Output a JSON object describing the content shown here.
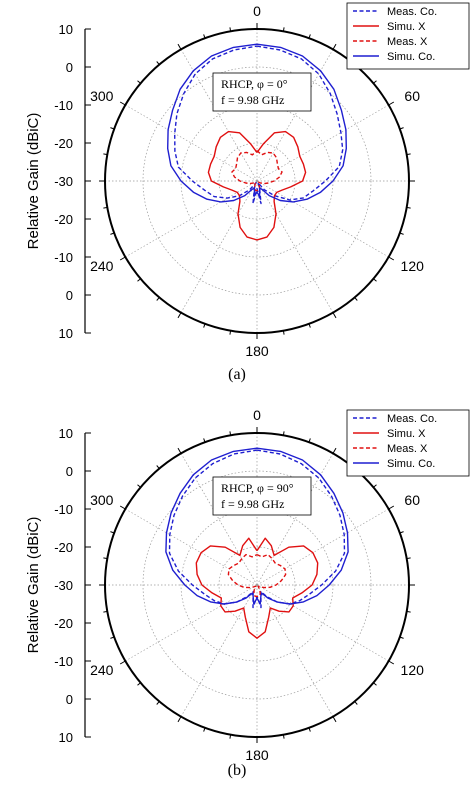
{
  "figure": {
    "captions": [
      "(a)",
      "(b)"
    ]
  },
  "chart_data": [
    {
      "type": "polar-line",
      "ylabel": "Relative Gain (dBiC)",
      "radial_ticks": [
        "10",
        "0",
        "-10",
        "-20",
        "-30",
        "-20",
        "-10",
        "0",
        "10"
      ],
      "radial_range_db": [
        -30,
        10
      ],
      "angle_ticks": [
        "0",
        "60",
        "120",
        "180",
        "240",
        "300"
      ],
      "annotation_line1": "RHCP, φ = 0°",
      "annotation_line2": "f = 9.98 GHz",
      "legend": [
        "Meas. Co.",
        "Simu. X",
        "Meas. X",
        "Simu. Co."
      ],
      "series": [
        {
          "name": "Meas. Co.",
          "color": "#1f1fd0",
          "dash": "dashed",
          "angles": [
            0,
            10,
            20,
            30,
            40,
            50,
            60,
            70,
            80,
            90,
            100,
            110,
            120,
            130,
            140,
            150,
            160,
            170,
            180,
            190,
            200,
            210,
            220,
            230,
            240,
            250,
            260,
            270,
            280,
            290,
            300,
            310,
            320,
            330,
            340,
            350
          ],
          "values": [
            5.5,
            5,
            4.2,
            2.5,
            0,
            -2.5,
            -4.5,
            -6,
            -8,
            -12,
            -15,
            -17,
            -20,
            -24,
            -27,
            -29.5,
            -28,
            -24,
            -28,
            -24,
            -28,
            -29.5,
            -27,
            -24,
            -21,
            -18,
            -16,
            -13,
            -9,
            -7,
            -5,
            -2.5,
            0,
            2.5,
            4.2,
            5
          ]
        },
        {
          "name": "Simu. X",
          "color": "#e01010",
          "dash": "solid",
          "angles": [
            0,
            10,
            20,
            30,
            40,
            50,
            60,
            70,
            80,
            90,
            100,
            110,
            120,
            130,
            140,
            150,
            160,
            170,
            180,
            190,
            200,
            210,
            220,
            230,
            240,
            250,
            260,
            270,
            280,
            290,
            300,
            310,
            320,
            330,
            340,
            350
          ],
          "values": [
            -22.5,
            -20,
            -16.5,
            -15,
            -15,
            -16,
            -17,
            -17,
            -17,
            -18,
            -21,
            -23,
            -24,
            -24,
            -23,
            -20,
            -17,
            -15,
            -14.5,
            -15,
            -17,
            -20,
            -23,
            -24,
            -24,
            -23,
            -21,
            -18,
            -17,
            -17,
            -17,
            -16,
            -15,
            -15,
            -16.5,
            -20
          ]
        },
        {
          "name": "Meas. X",
          "color": "#e01010",
          "dash": "dashed",
          "angles": [
            0,
            10,
            20,
            30,
            40,
            50,
            60,
            70,
            80,
            90,
            100,
            110,
            120,
            130,
            140,
            150,
            160,
            170,
            180,
            190,
            200,
            210,
            220,
            230,
            240,
            250,
            260,
            270,
            280,
            290,
            300,
            310,
            320,
            330,
            340,
            350
          ],
          "values": [
            -22,
            -23,
            -22,
            -21.5,
            -22,
            -23,
            -23.5,
            -23,
            -24,
            -25.5,
            -27,
            -28,
            -29,
            -29.5,
            -29.5,
            -29,
            -28,
            -27.5,
            -27.5,
            -27.5,
            -28,
            -29,
            -29.5,
            -29.5,
            -29,
            -28,
            -27,
            -25.5,
            -24,
            -23,
            -23.5,
            -23,
            -22,
            -21.5,
            -22,
            -23
          ]
        },
        {
          "name": "Simu. Co.",
          "color": "#1f1fd0",
          "dash": "solid",
          "angles": [
            0,
            10,
            20,
            30,
            40,
            50,
            60,
            70,
            80,
            90,
            100,
            110,
            120,
            130,
            140,
            150,
            160,
            170,
            180,
            190,
            200,
            210,
            220,
            230,
            240,
            250,
            260,
            270,
            280,
            290,
            300,
            310,
            320,
            330,
            340,
            350
          ],
          "values": [
            6,
            5.7,
            5,
            3.5,
            1.5,
            -1,
            -3,
            -5,
            -7,
            -10,
            -13,
            -16,
            -19,
            -22,
            -25,
            -27.5,
            -28,
            -26,
            -27,
            -26,
            -28,
            -27.5,
            -25,
            -22,
            -19,
            -16,
            -13,
            -10,
            -7,
            -5,
            -3,
            -1,
            1.5,
            3.5,
            5,
            5.7
          ]
        }
      ]
    },
    {
      "type": "polar-line",
      "ylabel": "Relative Gain (dBiC)",
      "radial_ticks": [
        "10",
        "0",
        "-10",
        "-20",
        "-30",
        "-20",
        "-10",
        "0",
        "10"
      ],
      "radial_range_db": [
        -30,
        10
      ],
      "angle_ticks": [
        "0",
        "60",
        "120",
        "180",
        "240",
        "300"
      ],
      "annotation_line1": "RHCP, φ = 90°",
      "annotation_line2": "f = 9.98 GHz",
      "legend": [
        "Meas. Co.",
        "Simu. X",
        "Meas. X",
        "Simu. Co."
      ],
      "series": [
        {
          "name": "Meas. Co.",
          "color": "#1f1fd0",
          "dash": "dashed",
          "angles": [
            0,
            10,
            20,
            30,
            40,
            50,
            60,
            70,
            80,
            90,
            100,
            110,
            120,
            130,
            140,
            150,
            160,
            170,
            180,
            190,
            200,
            210,
            220,
            230,
            240,
            250,
            260,
            270,
            280,
            290,
            300,
            310,
            320,
            330,
            340,
            350
          ],
          "values": [
            5.5,
            5,
            4,
            2.5,
            0.5,
            -1.5,
            -3.5,
            -5.5,
            -9,
            -13,
            -16,
            -18,
            -20,
            -23,
            -26,
            -28,
            -27,
            -24,
            -27,
            -24,
            -27,
            -28,
            -26,
            -23,
            -20,
            -18,
            -16,
            -13,
            -9,
            -5.5,
            -3.5,
            -1.5,
            0.5,
            2.5,
            4,
            5
          ]
        },
        {
          "name": "Simu. X",
          "color": "#e01010",
          "dash": "solid",
          "angles": [
            0,
            10,
            20,
            30,
            40,
            50,
            60,
            70,
            80,
            90,
            100,
            110,
            120,
            130,
            140,
            150,
            160,
            170,
            180,
            190,
            200,
            210,
            220,
            230,
            240,
            250,
            260,
            270,
            280,
            290,
            300,
            310,
            320,
            330,
            340,
            350
          ],
          "values": [
            -21,
            -17.5,
            -19,
            -21,
            -17,
            -14,
            -13,
            -13,
            -14,
            -15.5,
            -18,
            -20,
            -19,
            -19,
            -21,
            -23,
            -21,
            -17.5,
            -16,
            -17.5,
            -21,
            -23,
            -21,
            -19,
            -19,
            -20,
            -18,
            -15.5,
            -14,
            -13,
            -13,
            -14,
            -17,
            -21,
            -19,
            -17.5
          ]
        },
        {
          "name": "Meas. X",
          "color": "#e01010",
          "dash": "dashed",
          "angles": [
            0,
            10,
            20,
            30,
            40,
            50,
            60,
            70,
            80,
            90,
            100,
            110,
            120,
            130,
            140,
            150,
            160,
            170,
            180,
            190,
            200,
            210,
            220,
            230,
            240,
            250,
            260,
            270,
            280,
            290,
            300,
            310,
            320,
            330,
            340,
            350
          ],
          "values": [
            -22,
            -22.5,
            -21.5,
            -22,
            -22.5,
            -22,
            -21.5,
            -22,
            -23.5,
            -25,
            -26.5,
            -28,
            -29,
            -29.5,
            -29.5,
            -28.5,
            -27.5,
            -27,
            -27,
            -27,
            -27.5,
            -28.5,
            -29.5,
            -29.5,
            -29,
            -28,
            -26.5,
            -25,
            -23.5,
            -22,
            -21.5,
            -22,
            -22.5,
            -22,
            -21.5,
            -22.5
          ]
        },
        {
          "name": "Simu. Co.",
          "color": "#1f1fd0",
          "dash": "solid",
          "angles": [
            0,
            10,
            20,
            30,
            40,
            50,
            60,
            70,
            80,
            90,
            100,
            110,
            120,
            130,
            140,
            150,
            160,
            170,
            180,
            190,
            200,
            210,
            220,
            230,
            240,
            250,
            260,
            270,
            280,
            290,
            300,
            310,
            320,
            330,
            340,
            350
          ],
          "values": [
            6,
            5.7,
            5,
            3.5,
            1.5,
            -0.5,
            -2.5,
            -4.5,
            -7.5,
            -11,
            -14,
            -17,
            -20,
            -23,
            -25.5,
            -27.5,
            -27,
            -25,
            -26.5,
            -25,
            -27,
            -27.5,
            -25.5,
            -23,
            -20,
            -17,
            -14,
            -11,
            -7.5,
            -4.5,
            -2.5,
            -0.5,
            1.5,
            3.5,
            5,
            5.7
          ]
        }
      ]
    }
  ]
}
